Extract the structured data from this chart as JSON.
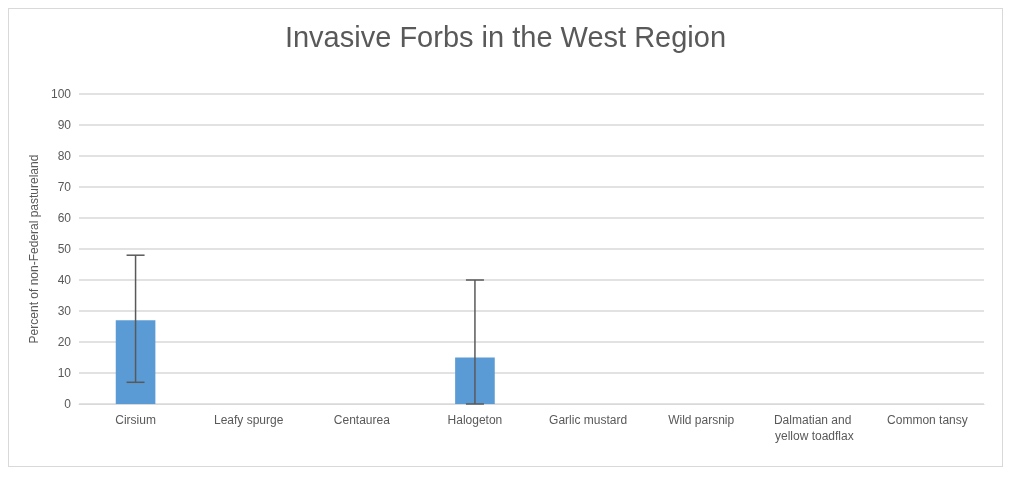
{
  "chart_data": {
    "type": "bar",
    "title": "Invasive Forbs in the West Region",
    "ylabel": "Percent of non-Federal pastureland",
    "categories": [
      "Cirsium",
      "Leafy spurge",
      "Centaurea",
      "Halogeton",
      "Garlic mustard",
      "Wild parsnip",
      "Dalmatian and yellow toadflax",
      "Common tansy"
    ],
    "values": [
      27,
      0,
      0,
      15,
      0,
      0,
      0,
      0
    ],
    "errors": [
      [
        7,
        48
      ],
      null,
      null,
      [
        0,
        40
      ],
      null,
      null,
      null,
      null
    ],
    "color": "#5b9bd5",
    "ylim": [
      0,
      100
    ],
    "yticks": [
      0,
      10,
      20,
      30,
      40,
      50,
      60,
      70,
      80,
      90,
      100
    ],
    "grid": "y"
  }
}
